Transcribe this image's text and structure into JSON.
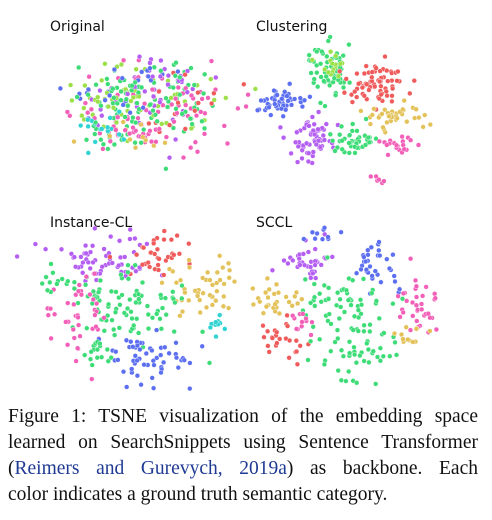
{
  "panels": [
    {
      "title": "Original"
    },
    {
      "title": "Clustering"
    },
    {
      "title": "Instance-CL"
    },
    {
      "title": "SCCL"
    }
  ],
  "caption": {
    "lines": [
      [
        "Figure 1: TSNE visualization of the embedding space"
      ],
      [
        "learned on SearchSnippets using Sentence Transformer"
      ],
      [
        "(",
        "Reimers and Gurevych, 2019a",
        ") as backbone.  Each"
      ],
      [
        "color indicates a ground truth semantic category."
      ]
    ]
  }
}
